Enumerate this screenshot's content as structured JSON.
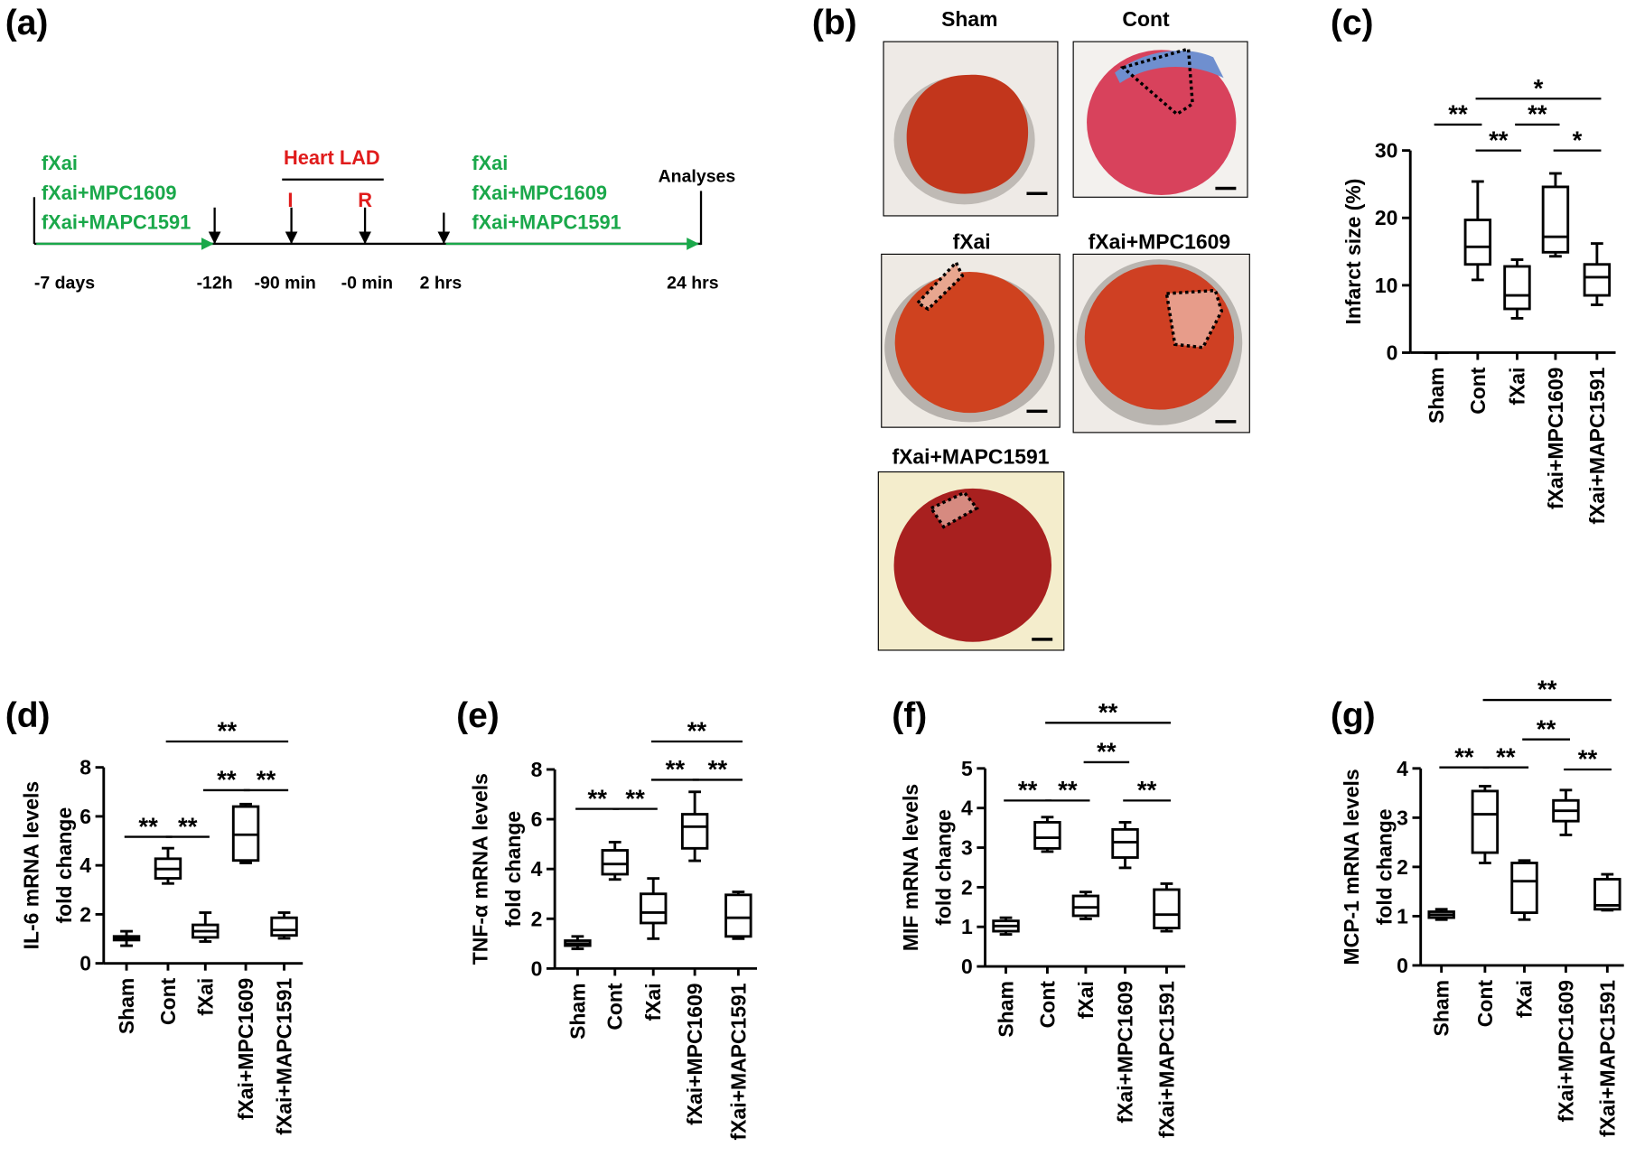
{
  "figure": {
    "panel_labels": [
      "(a)",
      "(b)",
      "(c)",
      "(d)",
      "(e)",
      "(f)",
      "(g)"
    ],
    "timeline": {
      "times": [
        "-7 days",
        "-12h",
        "-90 min",
        "-0 min",
        "2 hrs",
        "24 hrs"
      ],
      "pre_treatments": [
        "fXai",
        "fXai+MPC1609",
        "fXai+MAPC1591"
      ],
      "post_treatments": [
        "fXai",
        "fXai+MPC1609",
        "fXai+MAPC1591"
      ],
      "procedure": "Heart LAD",
      "markers": [
        "I",
        "R"
      ],
      "endpoint": "Analyses"
    },
    "photos": [
      "Sham",
      "Cont",
      "fXai",
      "fXai+MPC1609",
      "fXai+MAPC1591"
    ]
  },
  "chart_data": [
    {
      "type": "box",
      "ylabel": [
        "Infarct size (%)"
      ],
      "categories": [
        "Sham",
        "Cont",
        "fXai",
        "fXai+MPC1609",
        "fXai+MAPC1591"
      ],
      "boxes": [
        {
          "whislo": 0,
          "q1": 0,
          "med": 0,
          "q3": 0,
          "whishi": 0
        },
        {
          "whislo": 10.8,
          "q1": 13.1,
          "med": 15.7,
          "q3": 19.7,
          "whishi": 25.4
        },
        {
          "whislo": 5.1,
          "q1": 6.5,
          "med": 8.5,
          "q3": 12.8,
          "whishi": 13.8
        },
        {
          "whislo": 14.3,
          "q1": 14.9,
          "med": 17.2,
          "q3": 24.6,
          "whishi": 26.6
        },
        {
          "whislo": 7.1,
          "q1": 8.5,
          "med": 11.2,
          "q3": 13.1,
          "whishi": 16.2
        }
      ],
      "ylim": [
        0,
        30
      ],
      "yticks": [
        0,
        10,
        20,
        30
      ],
      "annotations": [
        "**",
        "**",
        "**",
        "*",
        "*"
      ],
      "color": "#000000"
    },
    {
      "type": "box",
      "ylabel": [
        "IL-6 mRNA levels",
        "fold change"
      ],
      "categories": [
        "Sham",
        "Cont",
        "fXai",
        "fXai+MPC1609",
        "fXai+MAPC1591"
      ],
      "boxes": [
        {
          "whislo": 0.72,
          "q1": 0.95,
          "med": 1.02,
          "q3": 1.1,
          "whishi": 1.31
        },
        {
          "whislo": 3.26,
          "q1": 3.47,
          "med": 3.85,
          "q3": 4.27,
          "whishi": 4.7
        },
        {
          "whislo": 0.89,
          "q1": 1.06,
          "med": 1.31,
          "q3": 1.57,
          "whishi": 2.07
        },
        {
          "whislo": 4.1,
          "q1": 4.2,
          "med": 5.25,
          "q3": 6.4,
          "whishi": 6.5
        },
        {
          "whislo": 1.02,
          "q1": 1.14,
          "med": 1.36,
          "q3": 1.86,
          "whishi": 2.07
        }
      ],
      "ylim": [
        0,
        8
      ],
      "yticks": [
        0,
        2,
        4,
        6,
        8
      ],
      "annotations": [
        "**",
        "**",
        "**",
        "**",
        "**"
      ],
      "color": "#000000"
    },
    {
      "type": "box",
      "ylabel": [
        "TNF-α mRNA levels",
        "fold change"
      ],
      "categories": [
        "Sham",
        "Cont",
        "fXai",
        "fXai+MPC1609",
        "fXai+MAPC1591"
      ],
      "boxes": [
        {
          "whislo": 0.79,
          "q1": 0.92,
          "med": 1.0,
          "q3": 1.12,
          "whishi": 1.29
        },
        {
          "whislo": 3.58,
          "q1": 3.79,
          "med": 4.2,
          "q3": 4.75,
          "whishi": 5.08
        },
        {
          "whislo": 1.2,
          "q1": 1.83,
          "med": 2.25,
          "q3": 3.0,
          "whishi": 3.62
        },
        {
          "whislo": 4.33,
          "q1": 4.83,
          "med": 5.7,
          "q3": 6.2,
          "whishi": 7.1
        },
        {
          "whislo": 1.2,
          "q1": 1.29,
          "med": 2.04,
          "q3": 2.96,
          "whishi": 3.08
        }
      ],
      "ylim": [
        0,
        8
      ],
      "yticks": [
        0,
        2,
        4,
        6,
        8
      ],
      "annotations": [
        "**",
        "**",
        "**",
        "**",
        "**"
      ],
      "color": "#000000"
    },
    {
      "type": "box",
      "ylabel": [
        "MIF mRNA levels",
        "fold change"
      ],
      "categories": [
        "Sham",
        "Cont",
        "fXai",
        "fXai+MPC1609",
        "fXai+MAPC1591"
      ],
      "boxes": [
        {
          "whislo": 0.81,
          "q1": 0.89,
          "med": 1.02,
          "q3": 1.15,
          "whishi": 1.23
        },
        {
          "whislo": 2.9,
          "q1": 2.98,
          "med": 3.25,
          "q3": 3.64,
          "whishi": 3.77
        },
        {
          "whislo": 1.2,
          "q1": 1.28,
          "med": 1.49,
          "q3": 1.78,
          "whishi": 1.88
        },
        {
          "whislo": 2.49,
          "q1": 2.75,
          "med": 3.14,
          "q3": 3.46,
          "whishi": 3.64
        },
        {
          "whislo": 0.89,
          "q1": 0.97,
          "med": 1.31,
          "q3": 1.94,
          "whishi": 2.09
        }
      ],
      "ylim": [
        0,
        5
      ],
      "yticks": [
        0,
        1,
        2,
        3,
        4,
        5
      ],
      "annotations": [
        "**",
        "**",
        "**",
        "**",
        "**"
      ],
      "color": "#000000"
    },
    {
      "type": "box",
      "ylabel": [
        "MCP-1 mRNA levels",
        "fold change"
      ],
      "categories": [
        "Sham",
        "Cont",
        "fXai",
        "fXai+MPC1609",
        "fXai+MAPC1591"
      ],
      "boxes": [
        {
          "whislo": 0.93,
          "q1": 0.97,
          "med": 1.03,
          "q3": 1.09,
          "whishi": 1.14
        },
        {
          "whislo": 2.08,
          "q1": 2.29,
          "med": 3.07,
          "q3": 3.54,
          "whishi": 3.64
        },
        {
          "whislo": 0.93,
          "q1": 1.07,
          "med": 1.71,
          "q3": 2.08,
          "whishi": 2.13
        },
        {
          "whislo": 2.65,
          "q1": 2.93,
          "med": 3.14,
          "q3": 3.35,
          "whishi": 3.56
        },
        {
          "whislo": 1.12,
          "q1": 1.14,
          "med": 1.22,
          "q3": 1.75,
          "whishi": 1.85
        }
      ],
      "ylim": [
        0,
        4
      ],
      "yticks": [
        0,
        1,
        2,
        3,
        4
      ],
      "annotations": [
        "**",
        "**",
        "**",
        "**",
        "**"
      ],
      "color": "#000000"
    }
  ]
}
